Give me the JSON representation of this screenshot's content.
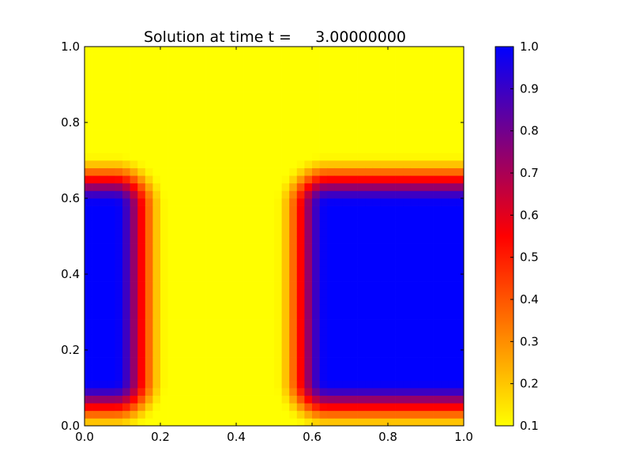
{
  "chart_data": {
    "type": "heatmap",
    "title": "Solution at time t =     3.00000000",
    "xlim": [
      0.0,
      1.0
    ],
    "ylim": [
      0.0,
      1.0
    ],
    "x_ticks": [
      "0.0",
      "0.2",
      "0.4",
      "0.6",
      "0.8",
      "1.0"
    ],
    "y_ticks": [
      "0.0",
      "0.2",
      "0.4",
      "0.6",
      "0.8",
      "1.0"
    ],
    "grid_resolution": 50,
    "colorbar": {
      "range": [
        0.1,
        1.0
      ],
      "ticks": [
        "0.1",
        "0.2",
        "0.3",
        "0.4",
        "0.5",
        "0.6",
        "0.7",
        "0.8",
        "0.9",
        "1.0"
      ],
      "colors": [
        "#ffff00",
        "#ff0000",
        "#0000ff"
      ]
    },
    "background_value": 0.1,
    "regions": [
      {
        "name": "left block",
        "x_range": [
          0.0,
          0.08
        ],
        "y_range": [
          0.12,
          0.58
        ],
        "value": 1.0
      },
      {
        "name": "right block",
        "x_range": [
          0.64,
          1.0
        ],
        "y_range": [
          0.12,
          0.58
        ],
        "value": 1.0
      }
    ],
    "edge_transition_width": 0.14
  }
}
